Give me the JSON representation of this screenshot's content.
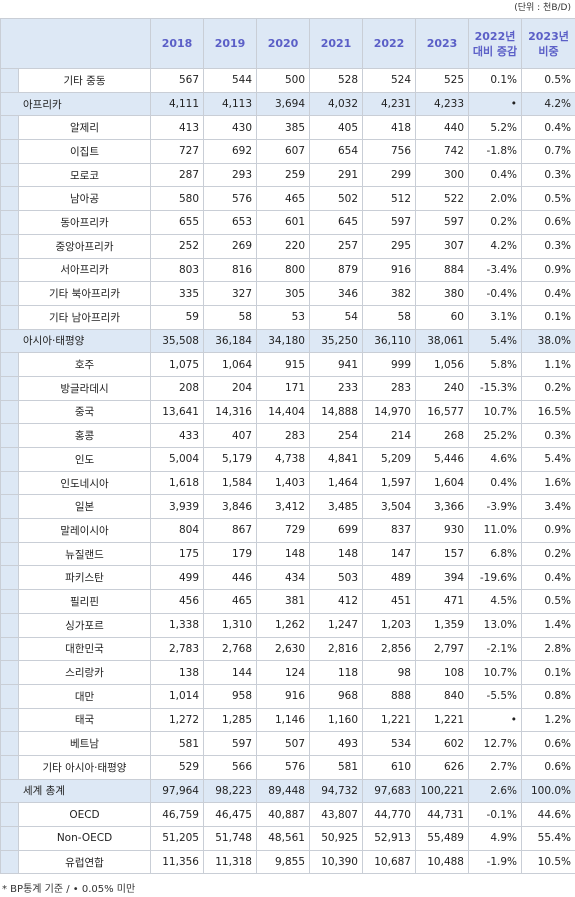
{
  "unit_note": "(단위 : 천B/D)",
  "table": {
    "header": [
      "2018",
      "2019",
      "2020",
      "2021",
      "2022",
      "2023",
      "2022년\n대비 증감",
      "2023년\n비중"
    ],
    "rows": [
      {
        "kind": "item",
        "name": "기타 중동",
        "cells": [
          "567",
          "544",
          "500",
          "528",
          "524",
          "525",
          "0.1%",
          "0.5%"
        ]
      },
      {
        "kind": "region",
        "name": "아프리카",
        "cells": [
          "4,111",
          "4,113",
          "3,694",
          "4,032",
          "4,231",
          "4,233",
          "•",
          "4.2%"
        ]
      },
      {
        "kind": "item",
        "name": "알제리",
        "cells": [
          "413",
          "430",
          "385",
          "405",
          "418",
          "440",
          "5.2%",
          "0.4%"
        ]
      },
      {
        "kind": "item",
        "name": "이집트",
        "cells": [
          "727",
          "692",
          "607",
          "654",
          "756",
          "742",
          "-1.8%",
          "0.7%"
        ]
      },
      {
        "kind": "item",
        "name": "모로코",
        "cells": [
          "287",
          "293",
          "259",
          "291",
          "299",
          "300",
          "0.4%",
          "0.3%"
        ]
      },
      {
        "kind": "item",
        "name": "남아공",
        "cells": [
          "580",
          "576",
          "465",
          "502",
          "512",
          "522",
          "2.0%",
          "0.5%"
        ]
      },
      {
        "kind": "item",
        "name": "동아프리카",
        "cells": [
          "655",
          "653",
          "601",
          "645",
          "597",
          "597",
          "0.2%",
          "0.6%"
        ]
      },
      {
        "kind": "item",
        "name": "중앙아프리카",
        "cells": [
          "252",
          "269",
          "220",
          "257",
          "295",
          "307",
          "4.2%",
          "0.3%"
        ]
      },
      {
        "kind": "item",
        "name": "서아프리카",
        "cells": [
          "803",
          "816",
          "800",
          "879",
          "916",
          "884",
          "-3.4%",
          "0.9%"
        ]
      },
      {
        "kind": "item",
        "name": "기타 북아프리카",
        "cells": [
          "335",
          "327",
          "305",
          "346",
          "382",
          "380",
          "-0.4%",
          "0.4%"
        ]
      },
      {
        "kind": "item",
        "name": "기타 남아프리카",
        "cells": [
          "59",
          "58",
          "53",
          "54",
          "58",
          "60",
          "3.1%",
          "0.1%"
        ]
      },
      {
        "kind": "region",
        "name": "아시아·태평양",
        "cells": [
          "35,508",
          "36,184",
          "34,180",
          "35,250",
          "36,110",
          "38,061",
          "5.4%",
          "38.0%"
        ]
      },
      {
        "kind": "item",
        "name": "호주",
        "cells": [
          "1,075",
          "1,064",
          "915",
          "941",
          "999",
          "1,056",
          "5.8%",
          "1.1%"
        ]
      },
      {
        "kind": "item",
        "name": "방글라데시",
        "cells": [
          "208",
          "204",
          "171",
          "233",
          "283",
          "240",
          "-15.3%",
          "0.2%"
        ]
      },
      {
        "kind": "item",
        "name": "중국",
        "cells": [
          "13,641",
          "14,316",
          "14,404",
          "14,888",
          "14,970",
          "16,577",
          "10.7%",
          "16.5%"
        ]
      },
      {
        "kind": "item",
        "name": "홍콩",
        "cells": [
          "433",
          "407",
          "283",
          "254",
          "214",
          "268",
          "25.2%",
          "0.3%"
        ]
      },
      {
        "kind": "item",
        "name": "인도",
        "cells": [
          "5,004",
          "5,179",
          "4,738",
          "4,841",
          "5,209",
          "5,446",
          "4.6%",
          "5.4%"
        ]
      },
      {
        "kind": "item",
        "name": "인도네시아",
        "cells": [
          "1,618",
          "1,584",
          "1,403",
          "1,464",
          "1,597",
          "1,604",
          "0.4%",
          "1.6%"
        ]
      },
      {
        "kind": "item",
        "name": "일본",
        "cells": [
          "3,939",
          "3,846",
          "3,412",
          "3,485",
          "3,504",
          "3,366",
          "-3.9%",
          "3.4%"
        ]
      },
      {
        "kind": "item",
        "name": "말레이시아",
        "cells": [
          "804",
          "867",
          "729",
          "699",
          "837",
          "930",
          "11.0%",
          "0.9%"
        ]
      },
      {
        "kind": "item",
        "name": "뉴질랜드",
        "cells": [
          "175",
          "179",
          "148",
          "148",
          "147",
          "157",
          "6.8%",
          "0.2%"
        ]
      },
      {
        "kind": "item",
        "name": "파키스탄",
        "cells": [
          "499",
          "446",
          "434",
          "503",
          "489",
          "394",
          "-19.6%",
          "0.4%"
        ]
      },
      {
        "kind": "item",
        "name": "필리핀",
        "cells": [
          "456",
          "465",
          "381",
          "412",
          "451",
          "471",
          "4.5%",
          "0.5%"
        ]
      },
      {
        "kind": "item",
        "name": "싱가포르",
        "cells": [
          "1,338",
          "1,310",
          "1,262",
          "1,247",
          "1,203",
          "1,359",
          "13.0%",
          "1.4%"
        ]
      },
      {
        "kind": "item",
        "name": "대한민국",
        "cells": [
          "2,783",
          "2,768",
          "2,630",
          "2,816",
          "2,856",
          "2,797",
          "-2.1%",
          "2.8%"
        ]
      },
      {
        "kind": "item",
        "name": "스리랑카",
        "cells": [
          "138",
          "144",
          "124",
          "118",
          "98",
          "108",
          "10.7%",
          "0.1%"
        ]
      },
      {
        "kind": "item",
        "name": "대만",
        "cells": [
          "1,014",
          "958",
          "916",
          "968",
          "888",
          "840",
          "-5.5%",
          "0.8%"
        ]
      },
      {
        "kind": "item",
        "name": "태국",
        "cells": [
          "1,272",
          "1,285",
          "1,146",
          "1,160",
          "1,221",
          "1,221",
          "•",
          "1.2%"
        ]
      },
      {
        "kind": "item",
        "name": "베트남",
        "cells": [
          "581",
          "597",
          "507",
          "493",
          "534",
          "602",
          "12.7%",
          "0.6%"
        ]
      },
      {
        "kind": "item",
        "name": "기타 아시아·태평양",
        "cells": [
          "529",
          "566",
          "576",
          "581",
          "610",
          "626",
          "2.7%",
          "0.6%"
        ]
      },
      {
        "kind": "region",
        "name": "세계 총계",
        "cells": [
          "97,964",
          "98,223",
          "89,448",
          "94,732",
          "97,683",
          "100,221",
          "2.6%",
          "100.0%"
        ]
      },
      {
        "kind": "item",
        "name": "OECD",
        "cells": [
          "46,759",
          "46,475",
          "40,887",
          "43,807",
          "44,770",
          "44,731",
          "-0.1%",
          "44.6%"
        ]
      },
      {
        "kind": "item",
        "name": "Non-OECD",
        "cells": [
          "51,205",
          "51,748",
          "48,561",
          "50,925",
          "52,913",
          "55,489",
          "4.9%",
          "55.4%"
        ]
      },
      {
        "kind": "item",
        "name": "유럽연합",
        "cells": [
          "11,356",
          "11,318",
          "9,855",
          "10,390",
          "10,687",
          "10,488",
          "-1.9%",
          "10.5%"
        ]
      }
    ]
  },
  "footnote": "* BP통계 기준 / • 0.05% 미만"
}
